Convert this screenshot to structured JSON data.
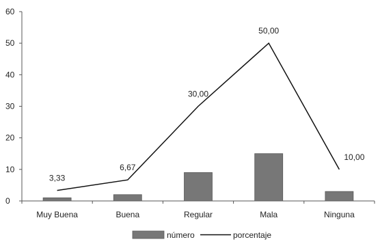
{
  "chart_data": {
    "type": "bar",
    "categories": [
      "Muy Buena",
      "Buena",
      "Regular",
      "Mala",
      "Ninguna"
    ],
    "series": [
      {
        "name": "número",
        "type": "bar",
        "values": [
          1,
          2,
          9,
          15,
          3
        ]
      },
      {
        "name": "porcentaje",
        "type": "line",
        "values": [
          3.33,
          6.67,
          30.0,
          50.0,
          10.0
        ]
      }
    ],
    "data_labels": [
      "3,33",
      "6,67",
      "30,00",
      "50,00",
      "10,00"
    ],
    "y_ticks": [
      "0",
      "10",
      "20",
      "30",
      "40",
      "50",
      "60"
    ],
    "ylim": [
      0,
      60
    ],
    "grid": false,
    "legend_position": "bottom-center",
    "colors": {
      "bar": "#777777",
      "bar_stroke": "#5a5a5a",
      "line": "#111111",
      "axis": "#555555"
    }
  }
}
